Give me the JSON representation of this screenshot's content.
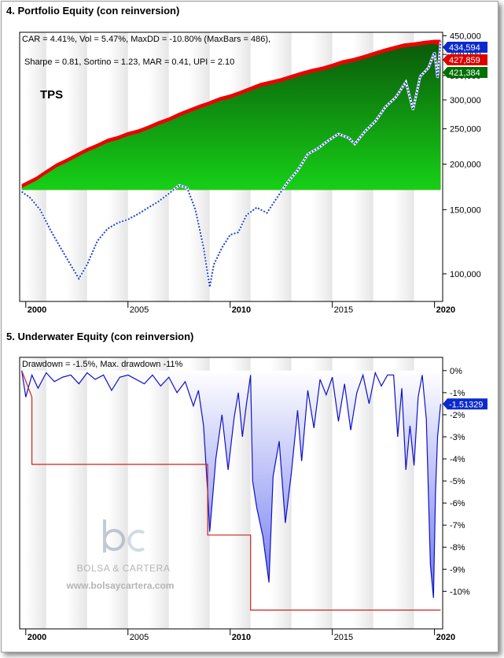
{
  "section1": {
    "title": "4. Portfolio Equity (con reinversion)"
  },
  "section2": {
    "title": "5. Underwater Equity (con reinversion)"
  },
  "watermark": {
    "logo": "bc",
    "name": "BOLSA & CARTERA",
    "url": "www.bolsaycartera.com"
  },
  "chart_data": [
    {
      "type": "area",
      "title": "4. Portfolio Equity (con reinversion)",
      "stats_line1": "CAR = 4.41%, Vol = 5.47%, MaxDD = -10.80% (MaxBars = 486),",
      "stats_line2": "Sharpe = 0.81, Sortino = 1.23, MAR = 0.41, UPI = 2.10",
      "annotation": "TPS",
      "y_scale": "log",
      "ylim": [
        84000,
        460000
      ],
      "xlim": [
        1999.7,
        2020.4
      ],
      "y_ticks": [
        100000,
        150000,
        200000,
        250000,
        300000,
        350000,
        400000,
        450000
      ],
      "y_tick_labels": [
        "100,000",
        "150,000",
        "200,000",
        "250,000",
        "300,000",
        "350,000",
        "400,000",
        "450,000"
      ],
      "x_ticks": [
        2000,
        2005,
        2010,
        2015,
        2020
      ],
      "x_tick_labels": [
        "2000",
        "2005",
        "2010",
        "2015",
        "2020"
      ],
      "x_bold_ticks": [
        2000,
        2010,
        2020
      ],
      "grid": false,
      "shaded_years": [
        [
          2000,
          2001
        ],
        [
          2002,
          2003
        ],
        [
          2004,
          2005
        ],
        [
          2006,
          2007
        ],
        [
          2008,
          2009
        ],
        [
          2010,
          2011
        ],
        [
          2012,
          2013
        ],
        [
          2014,
          2015
        ],
        [
          2016,
          2017
        ],
        [
          2018,
          2019
        ]
      ],
      "area_base": 170000,
      "series": [
        {
          "style": "area",
          "color": "#00b000",
          "x": [
            1999.8,
            2000.5,
            2001.0,
            2001.5,
            2002.0,
            2002.5,
            2003.0,
            2003.5,
            2004.0,
            2004.5,
            2005.0,
            2005.5,
            2006.0,
            2006.5,
            2007.0,
            2007.5,
            2008.0,
            2008.5,
            2008.9,
            2009.5,
            2010.0,
            2010.5,
            2011.0,
            2011.5,
            2012.0,
            2012.5,
            2013.0,
            2013.5,
            2014.0,
            2014.5,
            2015.0,
            2015.5,
            2016.0,
            2016.5,
            2017.0,
            2017.5,
            2018.0,
            2018.5,
            2019.0,
            2019.5,
            2020.0,
            2020.3
          ],
          "values": [
            172000,
            180000,
            188000,
            196000,
            202000,
            209000,
            216000,
            222000,
            229000,
            233000,
            239000,
            243000,
            249000,
            256000,
            262000,
            270000,
            277000,
            284000,
            289000,
            298000,
            303000,
            310000,
            318000,
            326000,
            331000,
            336000,
            343000,
            350000,
            356000,
            361000,
            368000,
            376000,
            381000,
            388000,
            396000,
            404000,
            411000,
            418000,
            421000,
            425000,
            428000,
            421384
          ]
        },
        {
          "name": "",
          "style": "dashed",
          "color": "#1f3fd0",
          "x": [
            1999.8,
            2000.2,
            2000.7,
            2001.2,
            2001.7,
            2002.1,
            2002.6,
            2003.0,
            2003.5,
            2004.0,
            2004.5,
            2005.0,
            2005.5,
            2006.0,
            2006.5,
            2007.0,
            2007.5,
            2007.9,
            2008.3,
            2008.7,
            2009.0,
            2009.2,
            2009.6,
            2010.0,
            2010.4,
            2010.8,
            2011.3,
            2011.8,
            2012.3,
            2012.8,
            2013.3,
            2013.8,
            2014.3,
            2014.8,
            2015.3,
            2015.8,
            2016.1,
            2016.6,
            2017.1,
            2017.6,
            2018.1,
            2018.6,
            2018.95,
            2019.3,
            2019.7,
            2020.0,
            2020.15,
            2020.3
          ],
          "values": [
            168000,
            162000,
            150000,
            132000,
            118000,
            108000,
            97000,
            106000,
            123000,
            133000,
            138000,
            141000,
            146000,
            152000,
            158000,
            166000,
            175000,
            172000,
            150000,
            118000,
            92000,
            106000,
            118000,
            128000,
            130000,
            145000,
            152000,
            147000,
            162000,
            178000,
            192000,
            213000,
            221000,
            232000,
            242000,
            236000,
            227000,
            246000,
            262000,
            287000,
            305000,
            336000,
            282000,
            348000,
            367000,
            405000,
            345000,
            434594
          ]
        }
      ],
      "right_labels": [
        {
          "text": "434,594",
          "value": 434594,
          "color": "#0a2acc"
        },
        {
          "text": "427,859",
          "value": 427859,
          "color": "#dd0000"
        },
        {
          "text": "421,384",
          "value": 421384,
          "color": "#007000"
        }
      ]
    },
    {
      "type": "area",
      "title": "5. Underwater Equity (con reinversion)",
      "stats_line1": "Drawdown = -1.5%, Max. drawdown -11%",
      "ylim": [
        -11.7,
        0.6
      ],
      "xlim": [
        1999.7,
        2020.4
      ],
      "y_ticks": [
        0,
        -1,
        -2,
        -3,
        -4,
        -5,
        -6,
        -7,
        -8,
        -9,
        -10
      ],
      "y_tick_labels": [
        "0%",
        "-1%",
        "-2%",
        "-3%",
        "-4%",
        "-5%",
        "-6%",
        "-7%",
        "-8%",
        "-9%",
        "-10%"
      ],
      "x_ticks": [
        2000,
        2005,
        2010,
        2015,
        2020
      ],
      "x_tick_labels": [
        "2000",
        "2005",
        "2010",
        "2015",
        "2020"
      ],
      "x_bold_ticks": [
        2000,
        2010,
        2020
      ],
      "grid": false,
      "shaded_years": [
        [
          2000,
          2001
        ],
        [
          2002,
          2003
        ],
        [
          2004,
          2005
        ],
        [
          2006,
          2007
        ],
        [
          2008,
          2009
        ],
        [
          2010,
          2011
        ],
        [
          2012,
          2013
        ],
        [
          2014,
          2015
        ],
        [
          2016,
          2017
        ],
        [
          2018,
          2019
        ]
      ],
      "series": [
        {
          "name": "Drawdown",
          "style": "area",
          "color": "#1010c8",
          "x": [
            1999.8,
            2000.0,
            2000.3,
            2000.6,
            2001.0,
            2001.4,
            2001.8,
            2002.2,
            2002.6,
            2003.0,
            2003.4,
            2003.8,
            2004.2,
            2004.6,
            2005.0,
            2005.4,
            2005.8,
            2006.2,
            2006.6,
            2007.0,
            2007.4,
            2007.8,
            2008.2,
            2008.45,
            2008.7,
            2008.9,
            2009.0,
            2009.3,
            2009.6,
            2009.9,
            2010.2,
            2010.4,
            2010.6,
            2010.8,
            2011.0,
            2011.1,
            2011.3,
            2011.6,
            2011.9,
            2012.1,
            2012.4,
            2012.7,
            2013.0,
            2013.3,
            2013.5,
            2013.8,
            2014.1,
            2014.4,
            2014.7,
            2015.0,
            2015.3,
            2015.6,
            2015.9,
            2016.2,
            2016.5,
            2016.8,
            2017.1,
            2017.4,
            2017.7,
            2018.0,
            2018.2,
            2018.4,
            2018.6,
            2018.8,
            2019.0,
            2019.2,
            2019.4,
            2019.6,
            2019.8,
            2019.95,
            2020.05,
            2020.15,
            2020.3
          ],
          "values": [
            0,
            -1.2,
            -0.2,
            -0.8,
            -0.1,
            -0.5,
            -0.3,
            -0.2,
            -0.6,
            -0.1,
            -0.4,
            -0.2,
            -0.9,
            -0.3,
            -0.2,
            -0.4,
            -0.6,
            -0.2,
            -0.7,
            -0.3,
            -1.0,
            -0.5,
            -1.6,
            -0.9,
            -2.5,
            -5.5,
            -7.3,
            -4.0,
            -2.0,
            -4.5,
            -2.1,
            -1.0,
            -3.0,
            -1.5,
            -0.2,
            -5.0,
            -6.2,
            -7.5,
            -9.6,
            -4.8,
            -3.2,
            -6.9,
            -4.6,
            -1.8,
            -4.1,
            -0.9,
            -2.6,
            -0.4,
            -1.1,
            -0.3,
            -2.3,
            -0.6,
            -2.7,
            -1.0,
            -0.2,
            -1.5,
            -0.1,
            -0.7,
            -0.2,
            -0.2,
            -3.0,
            -0.8,
            -4.5,
            -2.5,
            -4.3,
            -1.2,
            -0.2,
            -2.2,
            -8.8,
            -10.3,
            -5.5,
            -3.0,
            -1.51329
          ]
        },
        {
          "name": "Max. drawdown",
          "style": "step",
          "color": "#cc2222",
          "x": [
            1999.8,
            2000.3,
            2000.3,
            2008.9,
            2008.9,
            2011.0,
            2011.0,
            2020.3
          ],
          "values": [
            0,
            -1.2,
            -4.25,
            -4.25,
            -7.45,
            -7.45,
            -10.85,
            -10.85
          ]
        }
      ],
      "right_labels": [
        {
          "text": "-1.51329",
          "value": -1.51329,
          "color": "#0a2acc"
        }
      ]
    }
  ]
}
